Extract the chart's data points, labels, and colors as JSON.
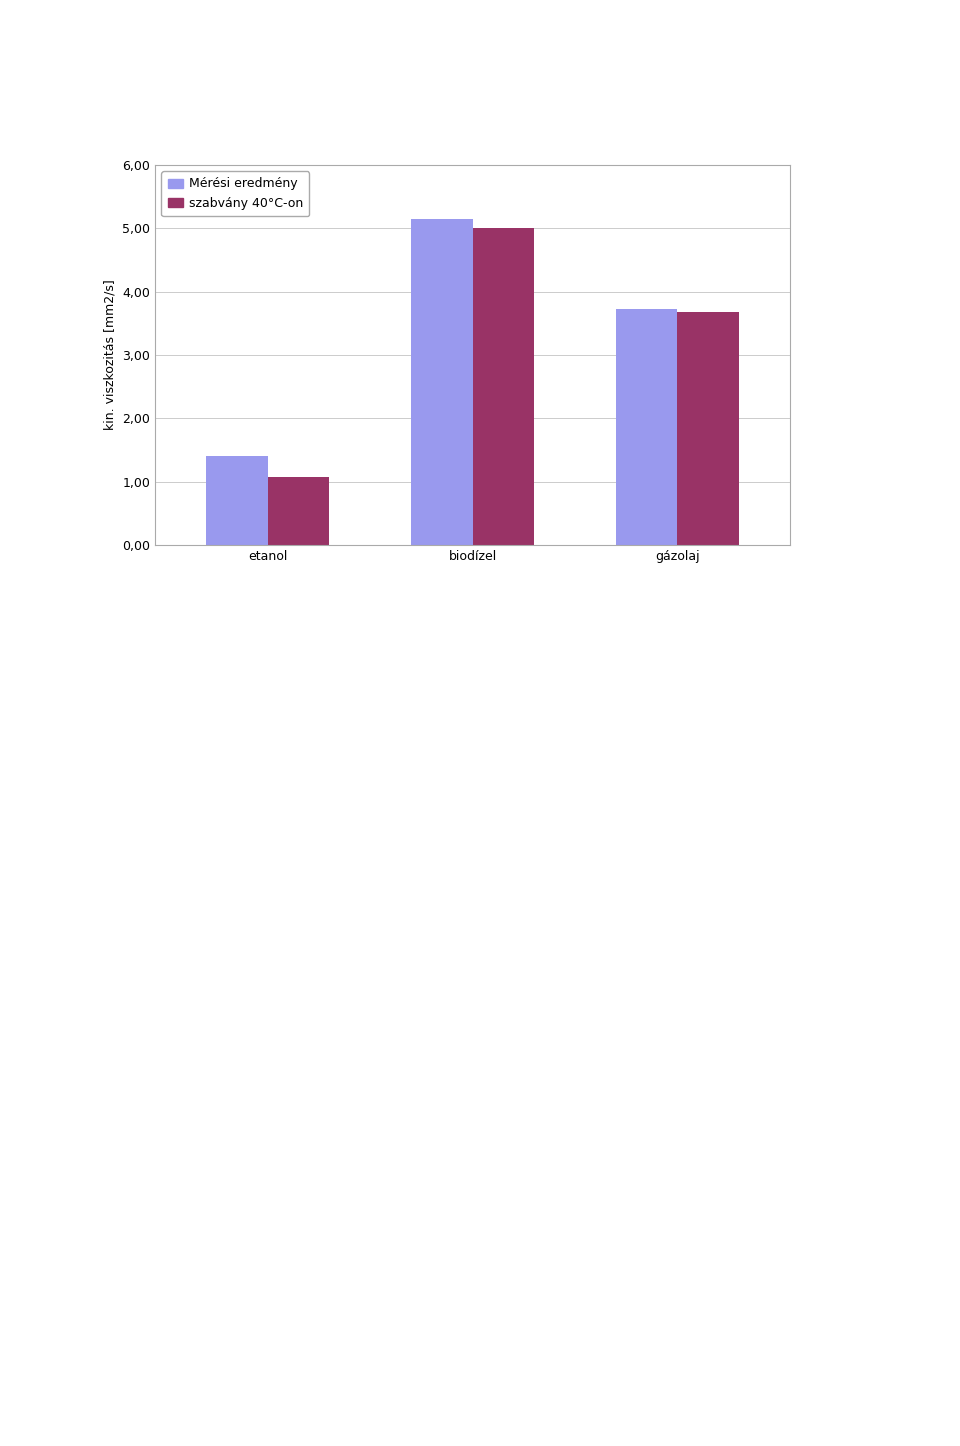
{
  "categories": [
    "etanol",
    "biodízel",
    "gázolaj"
  ],
  "series": {
    "Mérési eredmény": [
      1.4,
      5.15,
      3.73
    ],
    "szabvány 40°C-on": [
      1.08,
      5.0,
      3.68
    ]
  },
  "colors": {
    "Mérési eredmény": "#9999EE",
    "szabvány 40°C-on": "#993366"
  },
  "ylabel": "kin. viszkozitás [mm2/s]",
  "ylim": [
    0.0,
    6.0
  ],
  "yticks": [
    0.0,
    1.0,
    2.0,
    3.0,
    4.0,
    5.0,
    6.0
  ],
  "ytick_labels": [
    "0,00",
    "1,00",
    "2,00",
    "3,00",
    "4,00",
    "5,00",
    "6,00"
  ],
  "bar_width": 0.3,
  "background_color": "#ffffff",
  "plot_bg_color": "#ffffff",
  "grid_color": "#cccccc",
  "axis_fontsize": 9,
  "tick_fontsize": 9,
  "legend_fontsize": 9,
  "fig_width": 9.6,
  "fig_height": 14.46,
  "dpi": 100
}
